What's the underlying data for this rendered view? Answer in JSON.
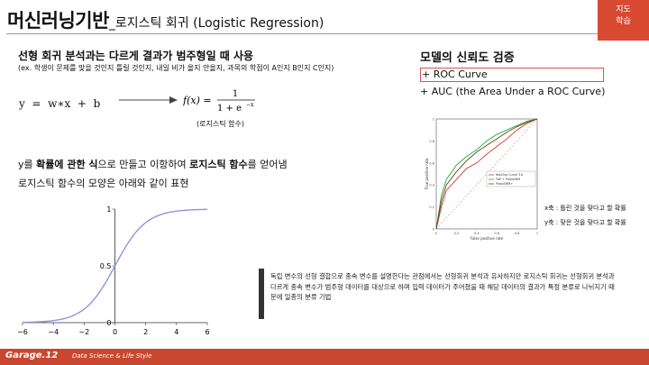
{
  "title": {
    "main": "머신러닝기반",
    "sub": "_로지스틱 회귀 (Logistic Regression)"
  },
  "corner": {
    "line1": "지도",
    "line2": "학습"
  },
  "content": {
    "heading": "선형 회귀 분석과는 다르게 결과가 범주형일 때 사용",
    "example": "(ex. 학생이 문제를 맞을 것인지 틀릴 것인지, 내일 비가 올지 안올지, 과목의 학점이 A인지 B인지 C인지)",
    "equation": "y  =  w∗x  +  b",
    "formula": {
      "lhs": "f(x) =",
      "numerator": "1",
      "denominator": "1 + e",
      "exponent": "−x"
    },
    "formula_caption": "(로지스틱 함수)",
    "desc1": {
      "p1": "y를 ",
      "b1": "확률에 관한 식",
      "p2": "으로 만들고 이항하여 ",
      "b2": "로지스틱 함수",
      "p3": "를 얻어냄"
    },
    "desc2": "로지스틱 함수의 모양은 아래와 같이 표현"
  },
  "sigmoid_chart": {
    "chart_data": {
      "type": "line",
      "x_ticks": [
        "−6",
        "−4",
        "−2",
        "0",
        "2",
        "4",
        "6"
      ],
      "y_ticks": [
        "0",
        "0.5",
        "1"
      ],
      "xlim": [
        -6,
        6
      ],
      "ylim": [
        0,
        1
      ],
      "series": [
        {
          "function": "sigmoid",
          "color": "#8c96dc"
        }
      ]
    }
  },
  "roc": {
    "title": "모델의 신뢰도 검증",
    "item1": "+ ROC Curve",
    "item2": "+ AUC (the Area Under a ROC Curve)",
    "chart_data": {
      "type": "line",
      "xlabel": "False positive rate",
      "ylabel": "True positive rate",
      "xlim": [
        0,
        1
      ],
      "ylim": [
        0,
        1
      ],
      "x_ticks": [
        "0",
        "0.2",
        "0.4",
        "0.6",
        "0.8",
        "1"
      ],
      "y_ticks": [
        "0",
        "0.2",
        "0.4",
        "0.6",
        "0.8",
        "1"
      ],
      "legend": [
        "NotChip Curve 3.0",
        "TAP + ProtoSMM",
        "ProtoSMM+"
      ],
      "series": [
        {
          "color": "#cc3333",
          "points": [
            [
              0,
              0
            ],
            [
              0.05,
              0.2
            ],
            [
              0.1,
              0.35
            ],
            [
              0.2,
              0.45
            ],
            [
              0.3,
              0.55
            ],
            [
              0.4,
              0.6
            ],
            [
              0.5,
              0.68
            ],
            [
              0.6,
              0.75
            ],
            [
              0.7,
              0.82
            ],
            [
              0.8,
              0.9
            ],
            [
              0.9,
              0.96
            ],
            [
              1,
              1
            ]
          ]
        },
        {
          "color": "#22aa44",
          "points": [
            [
              0,
              0
            ],
            [
              0.05,
              0.3
            ],
            [
              0.1,
              0.45
            ],
            [
              0.2,
              0.58
            ],
            [
              0.3,
              0.66
            ],
            [
              0.4,
              0.72
            ],
            [
              0.5,
              0.8
            ],
            [
              0.6,
              0.86
            ],
            [
              0.7,
              0.9
            ],
            [
              0.8,
              0.94
            ],
            [
              0.9,
              0.98
            ],
            [
              1,
              1
            ]
          ]
        },
        {
          "color": "#6f3f1f",
          "points": [
            [
              0,
              0
            ],
            [
              0.05,
              0.25
            ],
            [
              0.1,
              0.4
            ],
            [
              0.2,
              0.52
            ],
            [
              0.3,
              0.62
            ],
            [
              0.4,
              0.7
            ],
            [
              0.5,
              0.76
            ],
            [
              0.6,
              0.82
            ],
            [
              0.7,
              0.88
            ],
            [
              0.8,
              0.93
            ],
            [
              0.9,
              0.97
            ],
            [
              1,
              1
            ]
          ]
        }
      ]
    },
    "axis_note_x": "x축 : 틀린 것을 맞다고 할 확률",
    "axis_note_y": "y축 : 맞은 것을 맞다고 할 확률"
  },
  "note": "독립 변수의 선형 결합으로 종속 변수를 설명한다는 관점에서는 선형회귀 분석과 유사하지만 로지스틱 회귀는 선형회귀 분석과 다르게 종속 변수가 범주형 데이터를 대상으로 하며 입력 데이터가 주어졌을 때 해당 데이터의 결과가 특정 분류로 나뉘지기 때문에 일종의 분류 기법",
  "footer": {
    "brand": "Garage.12",
    "tagline": "Data Science & Life Style"
  }
}
